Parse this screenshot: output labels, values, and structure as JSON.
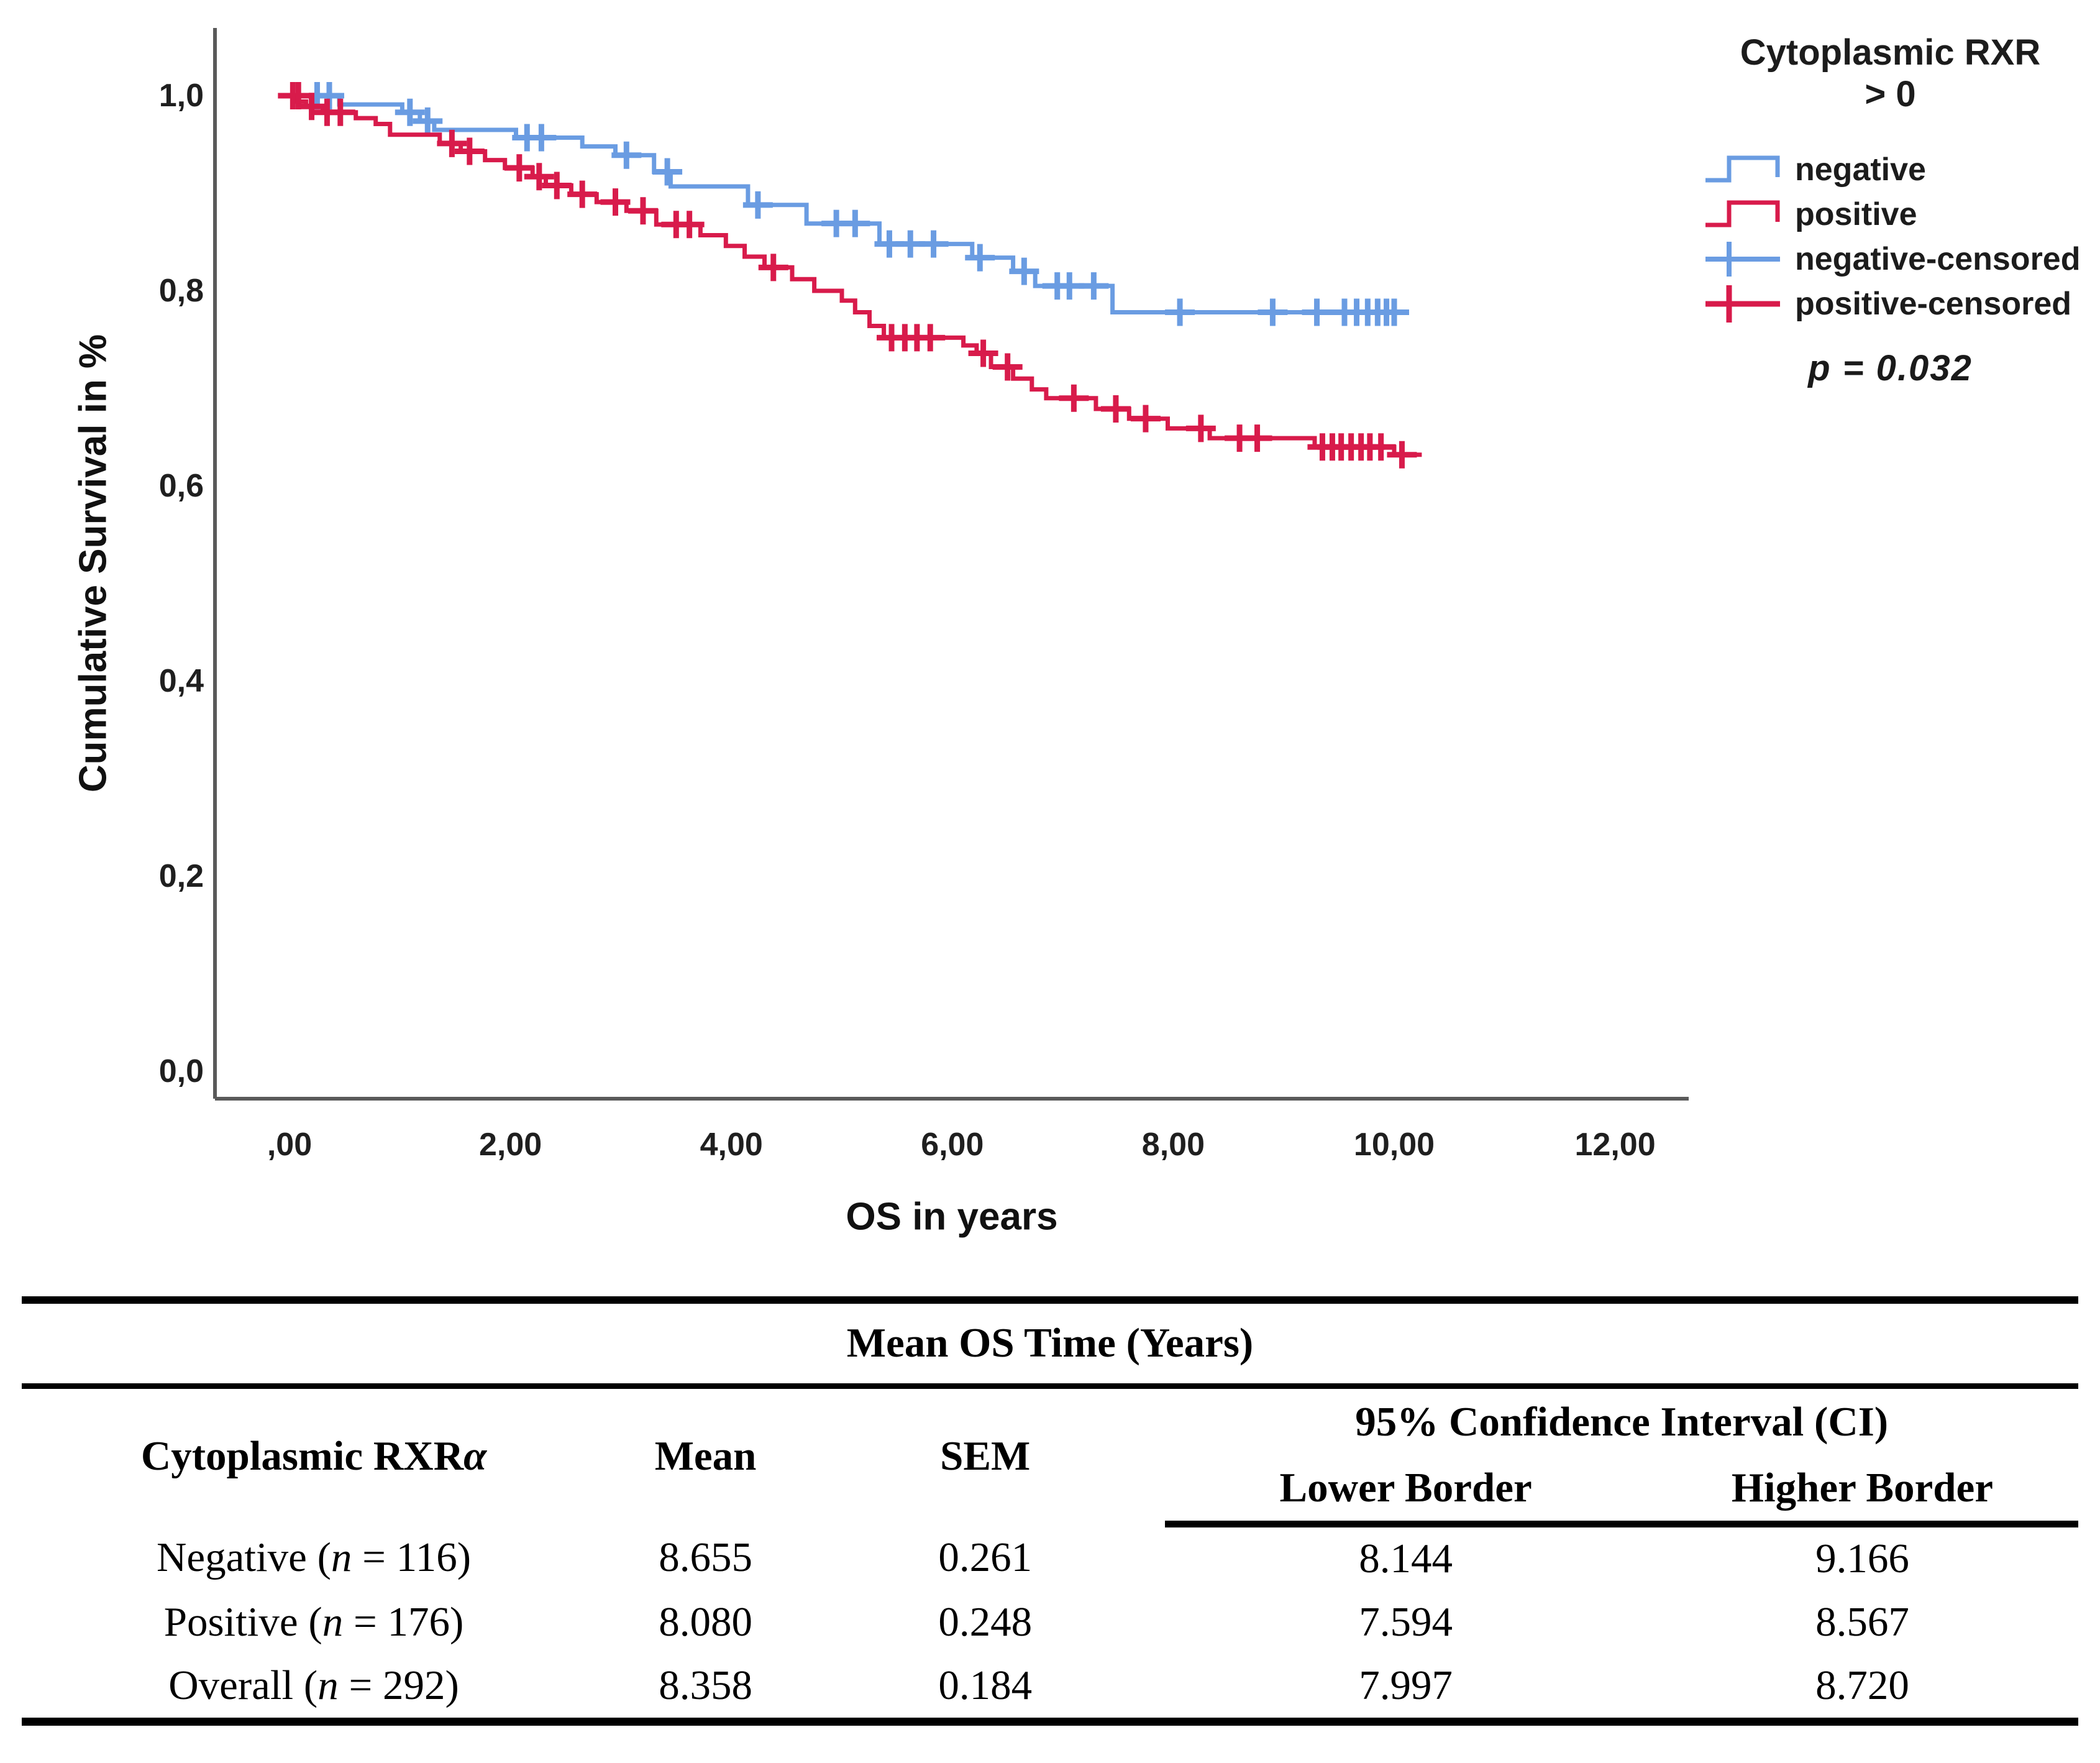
{
  "chart_data": {
    "type": "line",
    "subtype": "kaplan-meier-step",
    "title": "",
    "xlabel": "OS in years",
    "ylabel": "Cumulative Survival in %",
    "xlim": [
      -0.68,
      12.68
    ],
    "ylim": [
      -0.028,
      1.069
    ],
    "grid": false,
    "legend_position": "right",
    "x_ticks": [
      {
        "value": 0,
        "label": ",00"
      },
      {
        "value": 2,
        "label": "2,00"
      },
      {
        "value": 4,
        "label": "4,00"
      },
      {
        "value": 6,
        "label": "6,00"
      },
      {
        "value": 8,
        "label": "8,00"
      },
      {
        "value": 10,
        "label": "10,00"
      },
      {
        "value": 12,
        "label": "12,00"
      }
    ],
    "y_ticks": [
      {
        "value": 0.0,
        "label": "0,0"
      },
      {
        "value": 0.2,
        "label": "0,2"
      },
      {
        "value": 0.4,
        "label": "0,4"
      },
      {
        "value": 0.6,
        "label": "0,6"
      },
      {
        "value": 0.8,
        "label": "0,8"
      },
      {
        "value": 1.0,
        "label": "1,0"
      }
    ],
    "annotation_p_value": "p = 0.032",
    "series": [
      {
        "name": "negative",
        "color": "#6A9CE2",
        "steps": [
          [
            0,
            1.0
          ],
          [
            0.45,
            0.991
          ],
          [
            1.02,
            0.983
          ],
          [
            1.18,
            0.974
          ],
          [
            1.31,
            0.965
          ],
          [
            2.05,
            0.957
          ],
          [
            2.65,
            0.948
          ],
          [
            2.95,
            0.939
          ],
          [
            3.3,
            0.922
          ],
          [
            3.45,
            0.907
          ],
          [
            4.15,
            0.888
          ],
          [
            4.68,
            0.869
          ],
          [
            5.34,
            0.848
          ],
          [
            6.18,
            0.834
          ],
          [
            6.55,
            0.82
          ],
          [
            6.75,
            0.805
          ],
          [
            7.45,
            0.778
          ],
          [
            10.05,
            0.778
          ]
        ],
        "censors": [
          [
            0.25,
            1.0
          ],
          [
            0.36,
            1.0
          ],
          [
            1.09,
            0.983
          ],
          [
            1.25,
            0.974
          ],
          [
            2.15,
            0.957
          ],
          [
            2.28,
            0.957
          ],
          [
            3.05,
            0.939
          ],
          [
            3.42,
            0.922
          ],
          [
            4.24,
            0.888
          ],
          [
            4.95,
            0.869
          ],
          [
            5.12,
            0.869
          ],
          [
            5.43,
            0.848
          ],
          [
            5.62,
            0.848
          ],
          [
            5.83,
            0.848
          ],
          [
            6.25,
            0.834
          ],
          [
            6.65,
            0.82
          ],
          [
            6.95,
            0.805
          ],
          [
            7.06,
            0.805
          ],
          [
            7.28,
            0.805
          ],
          [
            8.06,
            0.778
          ],
          [
            8.9,
            0.778
          ],
          [
            9.3,
            0.778
          ],
          [
            9.55,
            0.778
          ],
          [
            9.66,
            0.778
          ],
          [
            9.76,
            0.778
          ],
          [
            9.85,
            0.778
          ],
          [
            9.93,
            0.778
          ],
          [
            10.0,
            0.778
          ]
        ]
      },
      {
        "name": "positive",
        "color": "#D81B4B",
        "steps": [
          [
            0,
            1.0
          ],
          [
            0.06,
            0.994
          ],
          [
            0.15,
            0.989
          ],
          [
            0.3,
            0.983
          ],
          [
            0.6,
            0.977
          ],
          [
            0.78,
            0.971
          ],
          [
            0.91,
            0.96
          ],
          [
            1.36,
            0.951
          ],
          [
            1.55,
            0.943
          ],
          [
            1.77,
            0.934
          ],
          [
            1.95,
            0.926
          ],
          [
            2.2,
            0.917
          ],
          [
            2.32,
            0.908
          ],
          [
            2.55,
            0.899
          ],
          [
            2.78,
            0.891
          ],
          [
            3.05,
            0.882
          ],
          [
            3.32,
            0.868
          ],
          [
            3.72,
            0.857
          ],
          [
            3.95,
            0.846
          ],
          [
            4.12,
            0.835
          ],
          [
            4.3,
            0.824
          ],
          [
            4.55,
            0.812
          ],
          [
            4.75,
            0.8
          ],
          [
            5.0,
            0.79
          ],
          [
            5.12,
            0.778
          ],
          [
            5.25,
            0.764
          ],
          [
            5.38,
            0.752
          ],
          [
            6.1,
            0.744
          ],
          [
            6.22,
            0.736
          ],
          [
            6.35,
            0.722
          ],
          [
            6.55,
            0.71
          ],
          [
            6.72,
            0.699
          ],
          [
            6.85,
            0.69
          ],
          [
            7.3,
            0.679
          ],
          [
            7.6,
            0.669
          ],
          [
            7.95,
            0.659
          ],
          [
            8.33,
            0.649
          ],
          [
            9.28,
            0.64
          ],
          [
            10.0,
            0.632
          ],
          [
            10.25,
            0.632
          ]
        ],
        "censors": [
          [
            0.03,
            1.0
          ],
          [
            0.08,
            1.0
          ],
          [
            0.2,
            0.989
          ],
          [
            0.34,
            0.983
          ],
          [
            0.46,
            0.983
          ],
          [
            1.47,
            0.951
          ],
          [
            1.63,
            0.943
          ],
          [
            2.08,
            0.926
          ],
          [
            2.26,
            0.917
          ],
          [
            2.42,
            0.908
          ],
          [
            2.65,
            0.899
          ],
          [
            2.95,
            0.891
          ],
          [
            3.2,
            0.882
          ],
          [
            3.5,
            0.868
          ],
          [
            3.62,
            0.868
          ],
          [
            4.38,
            0.824
          ],
          [
            5.45,
            0.752
          ],
          [
            5.57,
            0.752
          ],
          [
            5.68,
            0.752
          ],
          [
            5.8,
            0.752
          ],
          [
            6.28,
            0.736
          ],
          [
            6.5,
            0.722
          ],
          [
            7.1,
            0.69
          ],
          [
            7.48,
            0.679
          ],
          [
            7.75,
            0.669
          ],
          [
            8.25,
            0.659
          ],
          [
            8.6,
            0.649
          ],
          [
            8.76,
            0.649
          ],
          [
            9.35,
            0.64
          ],
          [
            9.44,
            0.64
          ],
          [
            9.52,
            0.64
          ],
          [
            9.61,
            0.64
          ],
          [
            9.7,
            0.64
          ],
          [
            9.78,
            0.64
          ],
          [
            9.88,
            0.64
          ],
          [
            10.07,
            0.632
          ]
        ]
      }
    ]
  },
  "legend": {
    "title_line1": "Cytoplasmic RXR",
    "title_line2": "> 0",
    "items": [
      {
        "label": "negative",
        "symbol": "step-line",
        "color": "#6A9CE2"
      },
      {
        "label": "positive",
        "symbol": "step-line",
        "color": "#D81B4B"
      },
      {
        "label": "negative-censored",
        "symbol": "plus",
        "color": "#6A9CE2"
      },
      {
        "label": "positive-censored",
        "symbol": "plus",
        "color": "#D81B4B"
      }
    ],
    "p_value": "p = 0.032"
  },
  "table": {
    "title": "Mean OS Time (Years)",
    "header": {
      "col1_pre": "Cytoplasmic RXR",
      "col1_alpha": "α",
      "col2": "Mean",
      "col3": "SEM",
      "ci_span": "95% Confidence Interval (CI)",
      "ci_lower": "Lower Border",
      "ci_higher": "Higher Border"
    },
    "rows": [
      {
        "label_pre": "Negative (",
        "n": "n",
        "label_post": " = 116)",
        "mean": "8.655",
        "sem": "0.261",
        "lower": "8.144",
        "higher": "9.166"
      },
      {
        "label_pre": "Positive (",
        "n": "n",
        "label_post": " = 176)",
        "mean": "8.080",
        "sem": "0.248",
        "lower": "7.594",
        "higher": "8.567"
      },
      {
        "label_pre": "Overall (",
        "n": "n",
        "label_post": " = 292)",
        "mean": "8.358",
        "sem": "0.184",
        "lower": "7.997",
        "higher": "8.720"
      }
    ]
  }
}
